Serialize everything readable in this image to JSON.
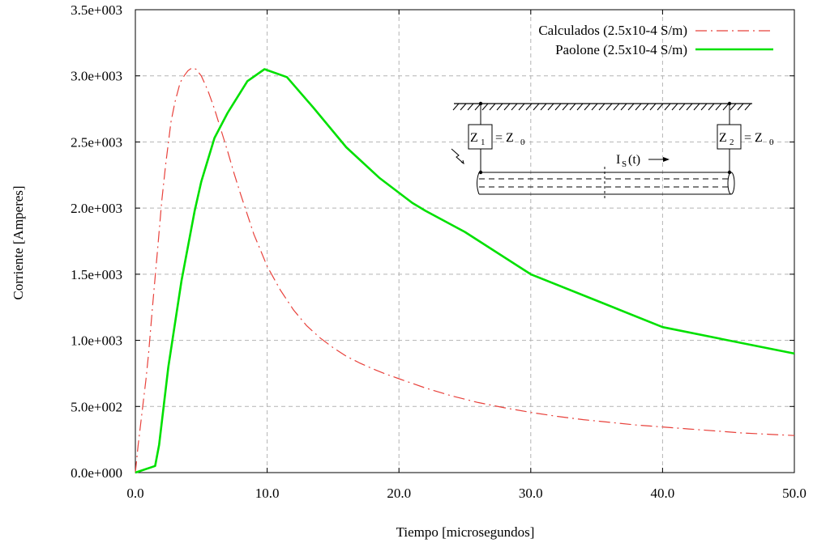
{
  "chart_data": {
    "type": "line",
    "xlabel": "Tiempo [microsegundos]",
    "ylabel": "Corriente [Amperes]",
    "xlim": [
      0,
      50
    ],
    "ylim": [
      0,
      3500
    ],
    "grid": true,
    "legend_position": "top-right",
    "x_ticks": [
      {
        "value": 0,
        "label": "0.0"
      },
      {
        "value": 10,
        "label": "10.0"
      },
      {
        "value": 20,
        "label": "20.0"
      },
      {
        "value": 30,
        "label": "30.0"
      },
      {
        "value": 40,
        "label": "40.0"
      },
      {
        "value": 50,
        "label": "50.0"
      }
    ],
    "y_ticks": [
      {
        "value": 0,
        "label": "0.0e+000"
      },
      {
        "value": 500,
        "label": "5.0e+002"
      },
      {
        "value": 1000,
        "label": "1.0e+003"
      },
      {
        "value": 1500,
        "label": "1.5e+003"
      },
      {
        "value": 2000,
        "label": "2.0e+003"
      },
      {
        "value": 2500,
        "label": "2.5e+003"
      },
      {
        "value": 3000,
        "label": "3.0e+003"
      },
      {
        "value": 3500,
        "label": "3.5e+003"
      }
    ],
    "series": [
      {
        "name": "Calculados (2.5x10-4 S/m)",
        "color": "#e8413b",
        "style": "dash-dot",
        "x": [
          0,
          0.2,
          0.5,
          0.8,
          1.0,
          1.3,
          1.7,
          2.0,
          2.3,
          2.7,
          3.0,
          3.4,
          3.7,
          4.0,
          4.3,
          4.6,
          5.0,
          5.5,
          6.0,
          6.5,
          7.0,
          7.5,
          8.0,
          8.5,
          9.0,
          9.5,
          10.0,
          11.0,
          12.0,
          13.0,
          14.0,
          15.0,
          16.0,
          17.0,
          18.0,
          19.0,
          20.0,
          22.0,
          24.0,
          26.0,
          28.0,
          30.0,
          32.0,
          34.0,
          36.0,
          38.0,
          40.0,
          42.0,
          44.0,
          46.0,
          48.0,
          50.0
        ],
        "values": [
          0,
          200,
          450,
          700,
          900,
          1250,
          1700,
          2050,
          2330,
          2650,
          2800,
          2950,
          3000,
          3040,
          3060,
          3050,
          3000,
          2890,
          2750,
          2590,
          2430,
          2260,
          2100,
          1950,
          1800,
          1680,
          1560,
          1380,
          1230,
          1110,
          1020,
          945,
          880,
          830,
          785,
          745,
          710,
          640,
          580,
          530,
          490,
          455,
          425,
          400,
          380,
          360,
          345,
          330,
          315,
          300,
          290,
          280
        ]
      },
      {
        "name": "Paolone (2.5x10-4 S/m)",
        "color": "#00e000",
        "style": "solid",
        "x": [
          0,
          1.5,
          1.8,
          2.5,
          3.5,
          4.5,
          5.0,
          6.0,
          7.0,
          8.5,
          9.8,
          11.5,
          13.5,
          16.0,
          18.5,
          21.0,
          22.0,
          25.0,
          30.0,
          35.0,
          40.0,
          45.0,
          50.0
        ],
        "values": [
          0,
          50,
          210,
          800,
          1450,
          1980,
          2200,
          2530,
          2720,
          2960,
          3050,
          2990,
          2760,
          2460,
          2230,
          2040,
          1980,
          1820,
          1500,
          1300,
          1100,
          1000,
          900
        ]
      }
    ],
    "inset_diagram": {
      "z1_letter": "Z",
      "z1_sub": "1",
      "z1_eq": "= Z",
      "z1_eq_sub": "0",
      "z2_letter": "Z",
      "z2_sub": "2",
      "z2_eq": "= Z",
      "z2_eq_sub": "0",
      "current_letter": "I",
      "current_sub": "S",
      "current_arg": "(t)"
    }
  }
}
